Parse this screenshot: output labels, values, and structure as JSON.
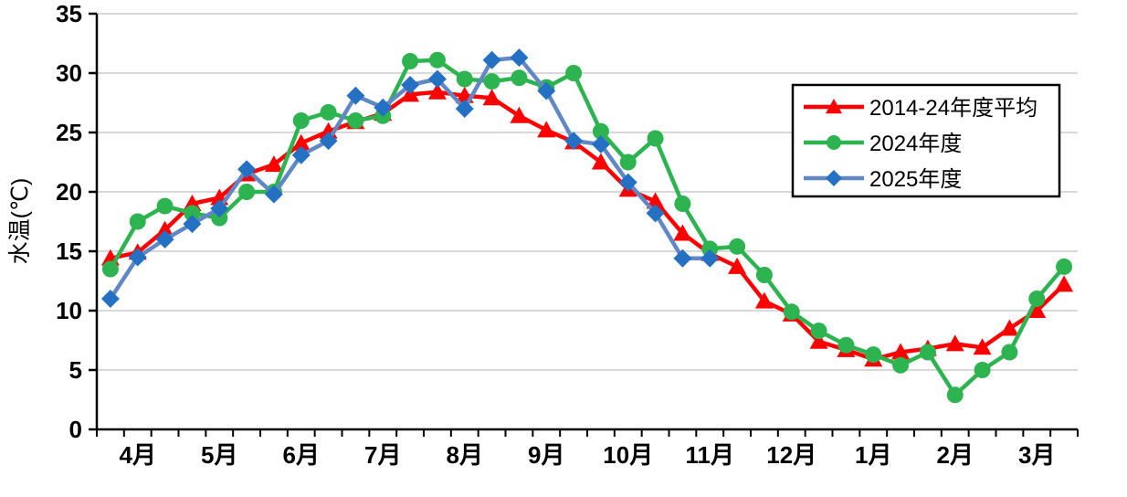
{
  "chart_data": {
    "type": "line",
    "title": "",
    "ylabel": "水温(℃)",
    "xlabel": "",
    "ylim": [
      0,
      35
    ],
    "y_ticks": [
      0,
      5,
      10,
      15,
      20,
      25,
      30,
      35
    ],
    "grid": true,
    "gridline_color": "#D9D9D9",
    "axis_color": "#000000",
    "legend_position": "upper-right",
    "months": [
      "4月",
      "5月",
      "6月",
      "7月",
      "8月",
      "9月",
      "10月",
      "11月",
      "12月",
      "1月",
      "2月",
      "3月"
    ],
    "points_per_month": 3,
    "series": [
      {
        "name": "2014-24年度平均",
        "marker": "triangle",
        "line_color": "#FF0000",
        "marker_color": "#FF0000",
        "values": [
          14.4,
          14.9,
          16.8,
          19.0,
          19.5,
          21.5,
          22.3,
          24.1,
          25.1,
          25.9,
          26.6,
          28.2,
          28.4,
          28.1,
          27.9,
          26.4,
          25.2,
          24.2,
          22.5,
          20.2,
          19.2,
          16.5,
          14.8,
          13.7,
          10.8,
          9.7,
          7.4,
          6.7,
          5.9,
          6.5,
          6.8,
          7.2,
          6.9,
          8.5,
          10.0,
          12.2
        ]
      },
      {
        "name": "2024年度",
        "marker": "circle",
        "line_color": "#2DB34F",
        "marker_color": "#2DB34F",
        "values": [
          13.5,
          17.5,
          18.8,
          18.2,
          17.8,
          20.0,
          20.0,
          26.0,
          26.7,
          26.0,
          26.4,
          31.0,
          31.1,
          29.5,
          29.3,
          29.6,
          28.8,
          30.0,
          25.1,
          22.5,
          24.5,
          19.0,
          15.2,
          15.4,
          13.0,
          9.9,
          8.3,
          7.1,
          6.3,
          5.4,
          6.5,
          2.9,
          5.0,
          6.5,
          11.0,
          13.7
        ]
      },
      {
        "name": "2025年度",
        "marker": "diamond",
        "line_color": "#6188C4",
        "marker_color": "#2470C2",
        "values": [
          11.0,
          14.5,
          16.0,
          17.3,
          18.6,
          21.9,
          19.8,
          23.1,
          24.3,
          28.1,
          27.1,
          29.0,
          29.5,
          27.0,
          31.1,
          31.3,
          28.5,
          24.3,
          24.0,
          20.8,
          18.2,
          14.4,
          14.4,
          null,
          null,
          null,
          null,
          null,
          null,
          null,
          null,
          null,
          null,
          null,
          null,
          null
        ]
      }
    ]
  }
}
